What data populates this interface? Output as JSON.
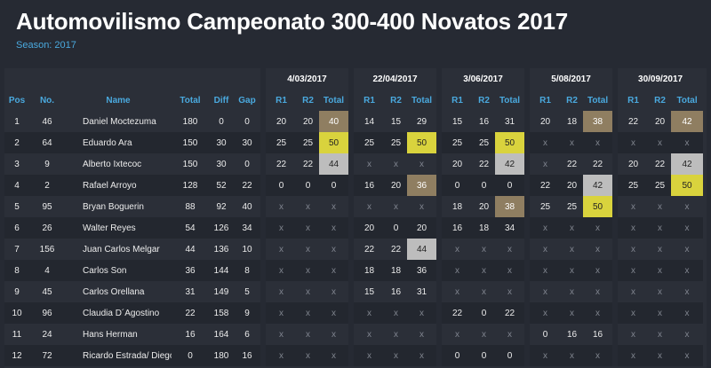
{
  "title": "Automovilismo Campeonato 300-400 Novatos 2017",
  "season": "Season: 2017",
  "colors": {
    "accent": "#4aa9de",
    "gold": "#8f7e61",
    "yellow": "#d9d33d",
    "silver": "#bdbdbd"
  },
  "dates": [
    "4/03/2017",
    "22/04/2017",
    "3/06/2017",
    "5/08/2017",
    "30/09/2017"
  ],
  "headers": [
    "Pos",
    "No.",
    "Name",
    "Total",
    "Diff",
    "Gap",
    "R1",
    "R2",
    "Total",
    "R1",
    "R2",
    "Total",
    "R1",
    "R2",
    "Total",
    "R1",
    "R2",
    "Total",
    "R1",
    "R2",
    "Total"
  ],
  "rows": [
    [
      "1",
      "46",
      "Daniel Moctezuma",
      "180",
      "0",
      "0",
      "20",
      "20",
      "40",
      "14",
      "15",
      "29",
      "15",
      "16",
      "31",
      "20",
      "18",
      "38",
      "22",
      "20",
      "42"
    ],
    [
      "2",
      "64",
      "Eduardo Ara",
      "150",
      "30",
      "30",
      "25",
      "25",
      "50",
      "25",
      "25",
      "50",
      "25",
      "25",
      "50",
      "x",
      "x",
      "x",
      "x",
      "x",
      "x"
    ],
    [
      "3",
      "9",
      "Alberto Ixtecoc",
      "150",
      "30",
      "0",
      "22",
      "22",
      "44",
      "x",
      "x",
      "x",
      "20",
      "22",
      "42",
      "x",
      "22",
      "22",
      "20",
      "22",
      "42"
    ],
    [
      "4",
      "2",
      "Rafael Arroyo",
      "128",
      "52",
      "22",
      "0",
      "0",
      "0",
      "16",
      "20",
      "36",
      "0",
      "0",
      "0",
      "22",
      "20",
      "42",
      "25",
      "25",
      "50"
    ],
    [
      "5",
      "95",
      "Bryan Boguerin",
      "88",
      "92",
      "40",
      "x",
      "x",
      "x",
      "x",
      "x",
      "x",
      "18",
      "20",
      "38",
      "25",
      "25",
      "50",
      "x",
      "x",
      "x"
    ],
    [
      "6",
      "26",
      "Walter Reyes",
      "54",
      "126",
      "34",
      "x",
      "x",
      "x",
      "20",
      "0",
      "20",
      "16",
      "18",
      "34",
      "x",
      "x",
      "x",
      "x",
      "x",
      "x"
    ],
    [
      "7",
      "156",
      "Juan Carlos Melgar",
      "44",
      "136",
      "10",
      "x",
      "x",
      "x",
      "22",
      "22",
      "44",
      "x",
      "x",
      "x",
      "x",
      "x",
      "x",
      "x",
      "x",
      "x"
    ],
    [
      "8",
      "4",
      "Carlos Son",
      "36",
      "144",
      "8",
      "x",
      "x",
      "x",
      "18",
      "18",
      "36",
      "x",
      "x",
      "x",
      "x",
      "x",
      "x",
      "x",
      "x",
      "x"
    ],
    [
      "9",
      "45",
      "Carlos Orellana",
      "31",
      "149",
      "5",
      "x",
      "x",
      "x",
      "15",
      "16",
      "31",
      "x",
      "x",
      "x",
      "x",
      "x",
      "x",
      "x",
      "x",
      "x"
    ],
    [
      "10",
      "96",
      "Claudia D´Agostino",
      "22",
      "158",
      "9",
      "x",
      "x",
      "x",
      "x",
      "x",
      "x",
      "22",
      "0",
      "22",
      "x",
      "x",
      "x",
      "x",
      "x",
      "x"
    ],
    [
      "11",
      "24",
      "Hans Herman",
      "16",
      "164",
      "6",
      "x",
      "x",
      "x",
      "x",
      "x",
      "x",
      "x",
      "x",
      "x",
      "0",
      "16",
      "16",
      "x",
      "x",
      "x"
    ],
    [
      "12",
      "72",
      "Ricardo Estrada/ Diego Luna",
      "0",
      "180",
      "16",
      "x",
      "x",
      "x",
      "x",
      "x",
      "x",
      "0",
      "0",
      "0",
      "x",
      "x",
      "x",
      "x",
      "x",
      "x"
    ]
  ],
  "highlights": {
    "0-8": "gold",
    "0-17": "gold",
    "0-20": "gold",
    "1-8": "yellow",
    "1-11": "yellow",
    "1-14": "yellow",
    "2-8": "silver",
    "2-14": "silver",
    "2-20": "silver",
    "3-11": "gold",
    "3-17": "silver",
    "3-20": "yellow",
    "4-14": "gold",
    "4-17": "yellow",
    "6-11": "silver"
  }
}
